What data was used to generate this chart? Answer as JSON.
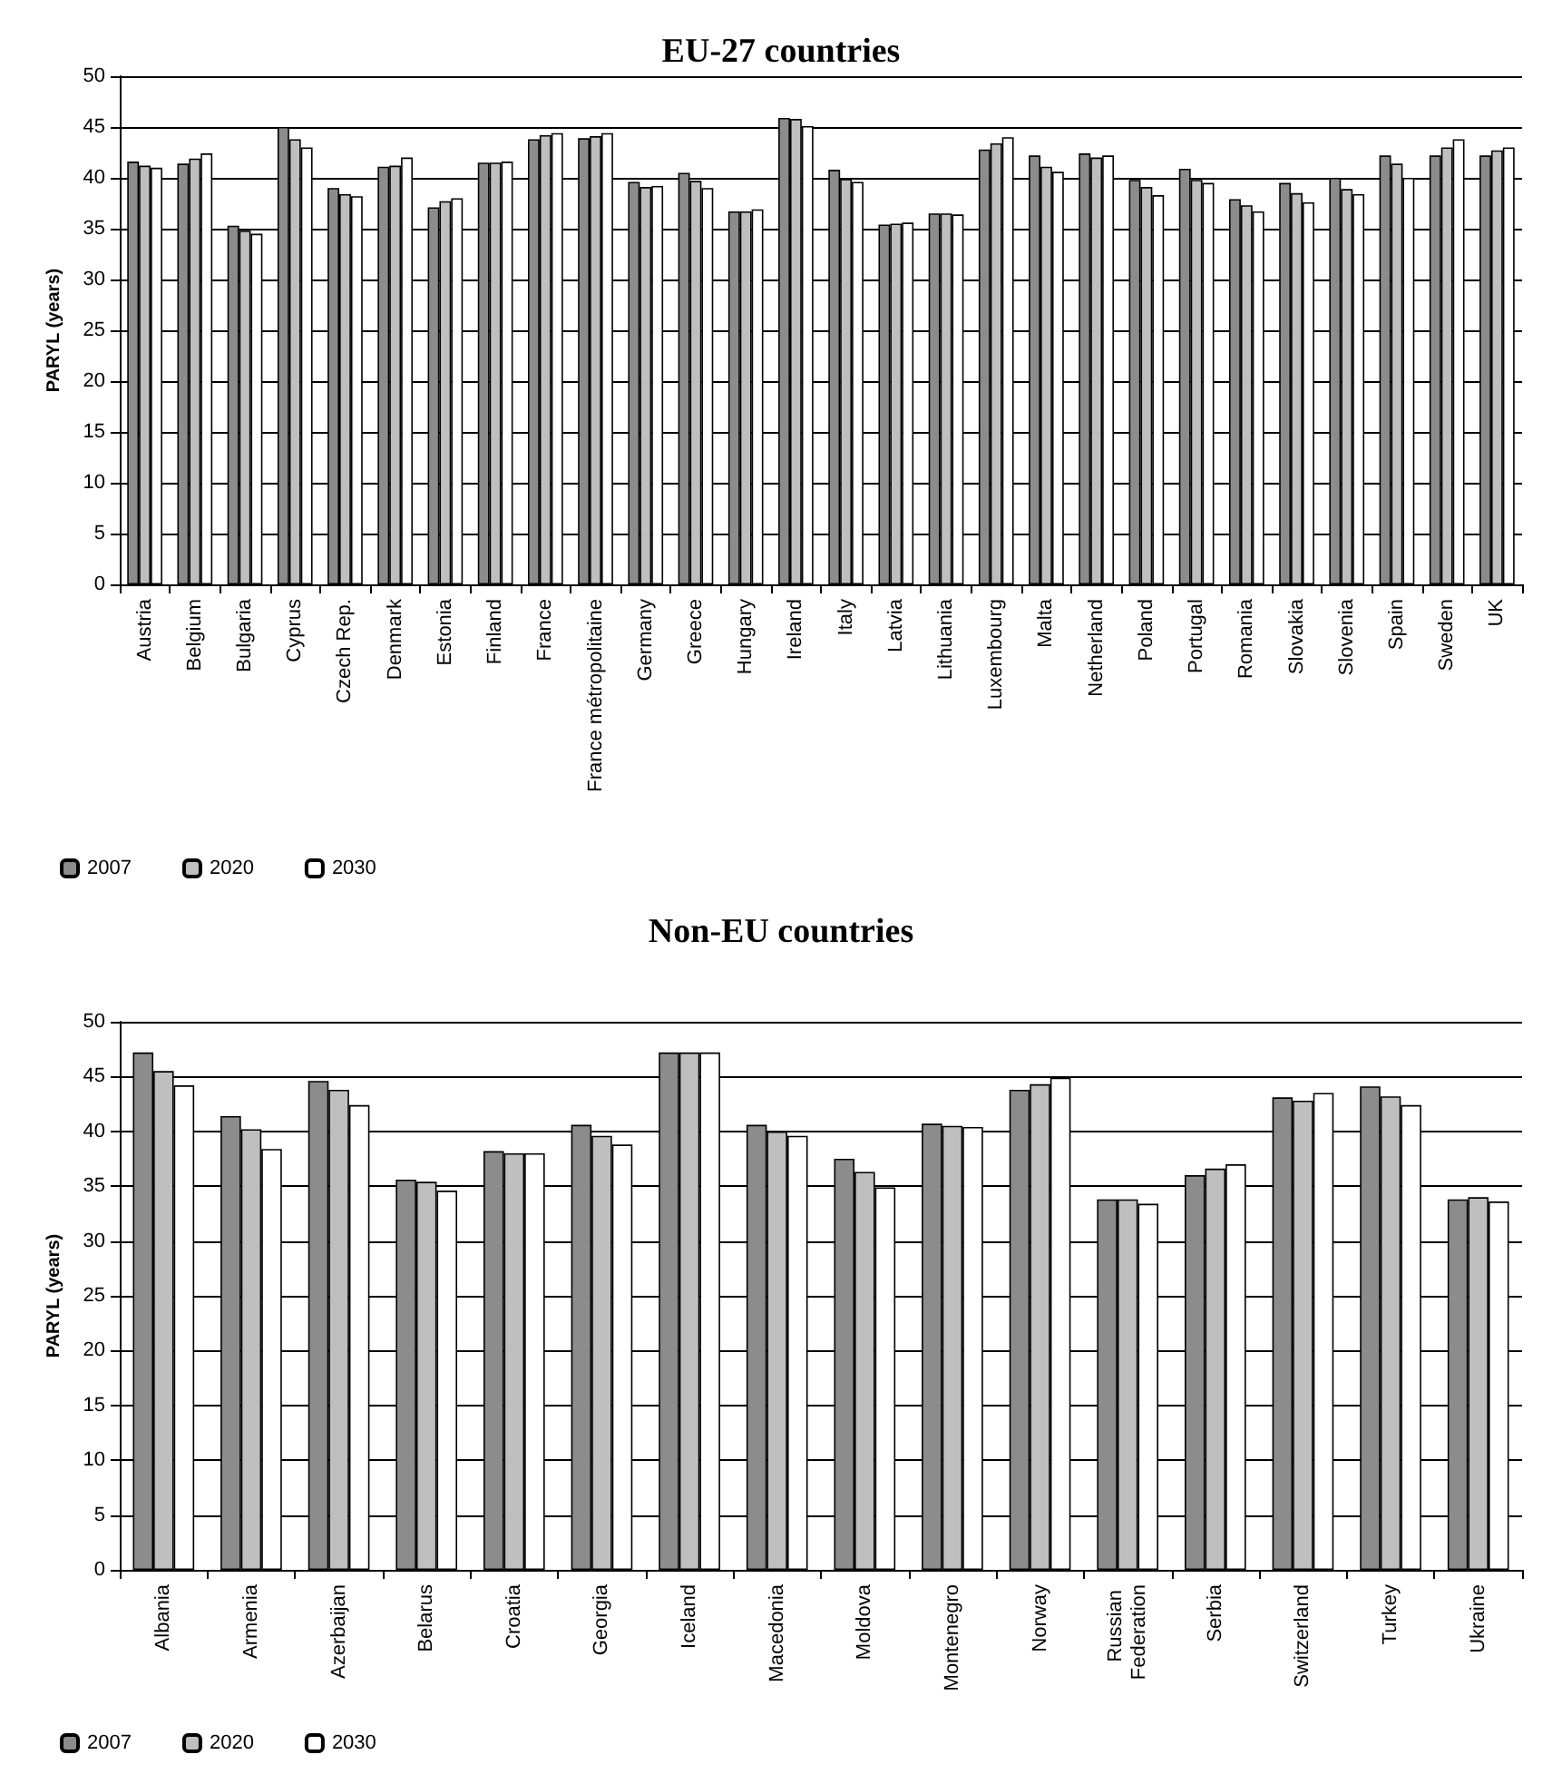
{
  "chart_data": [
    {
      "type": "bar",
      "title": "EU-27 countries",
      "ylabel": "PARYL (years)",
      "categories": [
        "Austria",
        "Belgium",
        "Bulgaria",
        "Cyprus",
        "Czech Rep.",
        "Denmark",
        "Estonia",
        "Finland",
        "France",
        "France métropolitaine",
        "Germany",
        "Greece",
        "Hungary",
        "Ireland",
        "Italy",
        "Latvia",
        "Lithuania",
        "Luxembourg",
        "Malta",
        "Netherland",
        "Poland",
        "Portugal",
        "Romania",
        "Slovakia",
        "Slovenia",
        "Spain",
        "Sweden",
        "UK"
      ],
      "series": [
        {
          "name": "2007",
          "color": "#8c8c8c",
          "values": [
            41.6,
            41.4,
            35.3,
            45.0,
            39.0,
            41.1,
            37.1,
            41.5,
            43.8,
            43.9,
            39.6,
            40.5,
            36.7,
            45.9,
            40.8,
            35.4,
            36.5,
            42.8,
            42.2,
            42.4,
            39.8,
            40.9,
            37.9,
            39.5,
            40.0,
            42.2,
            42.2,
            42.2
          ]
        },
        {
          "name": "2020",
          "color": "#bfbfbf",
          "values": [
            41.2,
            41.9,
            34.8,
            43.8,
            38.4,
            41.2,
            37.7,
            41.5,
            44.2,
            44.1,
            39.1,
            39.7,
            36.7,
            45.8,
            39.9,
            35.5,
            36.5,
            43.4,
            41.1,
            42.0,
            39.1,
            39.8,
            37.3,
            38.5,
            38.9,
            41.4,
            43.0,
            42.7
          ]
        },
        {
          "name": "2030",
          "color": "#ffffff",
          "values": [
            41.0,
            42.4,
            34.5,
            43.0,
            38.2,
            42.0,
            38.0,
            41.6,
            44.4,
            44.4,
            39.2,
            39.0,
            36.9,
            45.1,
            39.6,
            35.6,
            36.4,
            44.0,
            40.6,
            42.2,
            38.3,
            39.5,
            36.7,
            37.6,
            38.4,
            40.0,
            43.8,
            43.0
          ]
        }
      ],
      "ylim": [
        0,
        50
      ],
      "yticks": [
        0,
        5,
        10,
        15,
        20,
        25,
        30,
        35,
        40,
        45,
        50
      ],
      "grid": "y",
      "legend": "bottom left"
    },
    {
      "type": "bar",
      "title": "Non-EU countries",
      "ylabel": "PARYL (years)",
      "categories": [
        "Albania",
        "Armenia",
        "Azerbaijan",
        "Belarus",
        "Croatia",
        "Georgia",
        "Iceland",
        "Macedonia",
        "Moldova",
        "Montenegro",
        "Norway",
        "Russian Federation",
        "Serbia",
        "Switzerland",
        "Turkey",
        "Ukraine"
      ],
      "series": [
        {
          "name": "2007",
          "color": "#8c8c8c",
          "values": [
            47.2,
            41.4,
            44.6,
            35.6,
            38.2,
            40.6,
            47.2,
            40.6,
            37.5,
            40.7,
            43.8,
            33.8,
            36.0,
            43.1,
            44.1,
            33.8
          ]
        },
        {
          "name": "2020",
          "color": "#bfbfbf",
          "values": [
            45.5,
            40.2,
            43.8,
            35.4,
            38.0,
            39.6,
            47.2,
            40.0,
            36.3,
            40.5,
            44.3,
            33.8,
            36.6,
            42.8,
            43.2,
            34.0
          ]
        },
        {
          "name": "2030",
          "color": "#ffffff",
          "values": [
            44.2,
            38.4,
            42.4,
            34.6,
            38.0,
            38.8,
            47.2,
            39.6,
            34.9,
            40.4,
            44.9,
            33.4,
            37.0,
            43.5,
            42.4,
            33.6
          ]
        }
      ],
      "ylim": [
        0,
        50
      ],
      "yticks": [
        0,
        5,
        10,
        15,
        20,
        25,
        30,
        35,
        40,
        45,
        50
      ],
      "grid": "y",
      "legend": "bottom left"
    }
  ]
}
